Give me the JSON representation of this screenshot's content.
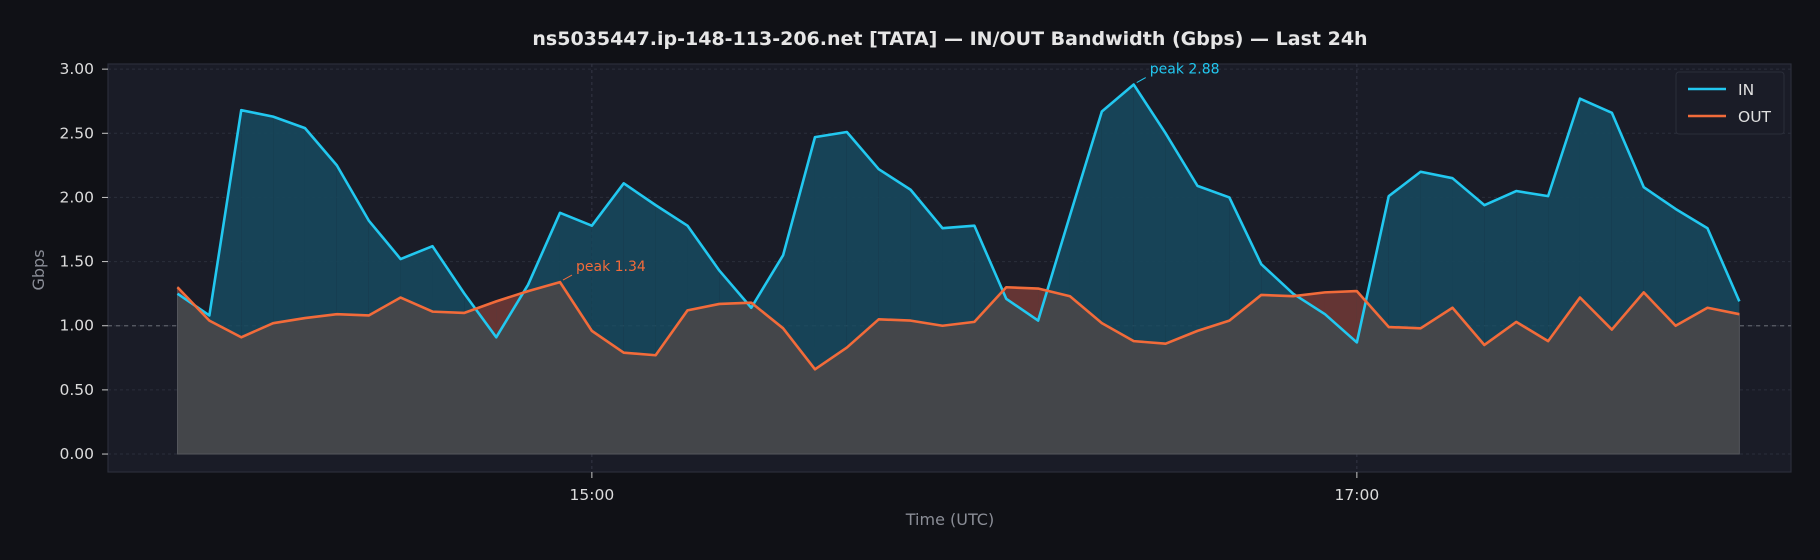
{
  "chart_data": {
    "type": "area",
    "title": "ns5035447.ip-148-113-206.net [TATA] — IN/OUT Bandwidth (Gbps) — Last 24h",
    "xlabel": "Time (UTC)",
    "ylabel": "Gbps",
    "ylim": [
      -0.14,
      3.04
    ],
    "yticks": [
      "0.00",
      "0.50",
      "1.00",
      "1.50",
      "2.00",
      "2.50",
      "3.00"
    ],
    "xlim_hours": [
      13.735,
      18.135
    ],
    "xticks": [
      {
        "label": "15:00",
        "hour": 15
      },
      {
        "label": "17:00",
        "hour": 17
      }
    ],
    "reference_line": 1.0,
    "grid": true,
    "legend": "top-right",
    "x_start": "13:55",
    "x_interval_minutes": 5,
    "series": [
      {
        "name": "IN",
        "color": "#22c8f0",
        "values": [
          1.25,
          1.08,
          2.68,
          2.63,
          2.54,
          2.25,
          1.82,
          1.52,
          1.62,
          1.25,
          0.91,
          1.32,
          1.88,
          1.78,
          2.11,
          1.94,
          1.78,
          1.43,
          1.14,
          1.55,
          2.47,
          2.51,
          2.22,
          2.06,
          1.76,
          1.78,
          1.21,
          1.04,
          1.86,
          2.67,
          2.88,
          2.5,
          2.09,
          2.0,
          1.48,
          1.25,
          1.09,
          0.87,
          2.01,
          2.2,
          2.15,
          1.94,
          2.05,
          2.01,
          2.77,
          2.66,
          2.08,
          1.91,
          1.76,
          1.19
        ]
      },
      {
        "name": "OUT",
        "color": "#f26b3a",
        "values": [
          1.3,
          1.04,
          0.91,
          1.02,
          1.06,
          1.09,
          1.08,
          1.22,
          1.11,
          1.1,
          1.19,
          1.27,
          1.34,
          0.96,
          0.79,
          0.77,
          1.12,
          1.17,
          1.18,
          0.98,
          0.66,
          0.83,
          1.05,
          1.04,
          1.0,
          1.03,
          1.3,
          1.29,
          1.23,
          1.02,
          0.88,
          0.86,
          0.96,
          1.04,
          1.24,
          1.23,
          1.26,
          1.27,
          0.99,
          0.98,
          1.14,
          0.85,
          1.03,
          0.88,
          1.22,
          0.97,
          1.26,
          1.0,
          1.14,
          1.09
        ]
      }
    ],
    "annotations": [
      {
        "text": "peak 2.88",
        "series": "IN",
        "index": 30,
        "color": "#22c8f0"
      },
      {
        "text": "peak 1.34",
        "series": "OUT",
        "index": 12,
        "color": "#f26b3a"
      }
    ]
  }
}
